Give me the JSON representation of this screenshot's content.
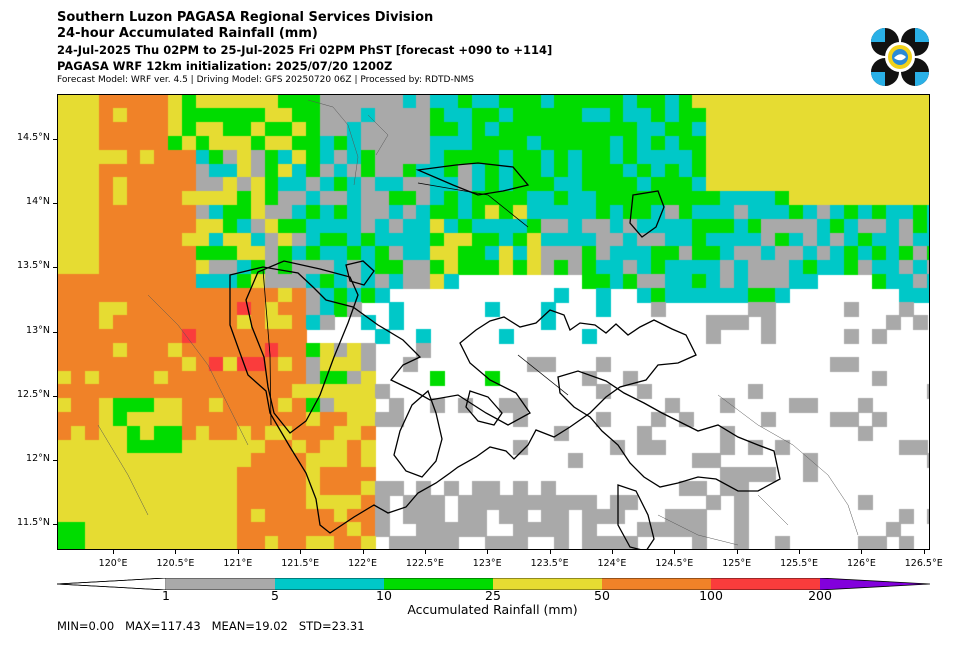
{
  "header": {
    "title": "Southern Luzon PAGASA Regional Services Division",
    "subtitle": "24-hour Accumulated Rainfall (mm)",
    "period": "24-Jul-2025 Thu 02PM to 25-Jul-2025 Fri 02PM PhST [forecast +090 to +114]",
    "model_init": "PAGASA WRF 12km initialization: 2025/07/20 1200Z",
    "credits": "Forecast Model: WRF ver. 4.5 | Driving Model: GFS 20250720 06Z | Processed by: RDTD-NMS"
  },
  "logo": {
    "icon": "pagasa-logo"
  },
  "map": {
    "lon_range": [
      119.55,
      126.55
    ],
    "lat_range": [
      11.3,
      14.85
    ],
    "lat_ticks": [
      "14.5°N",
      "14°N",
      "13.5°N",
      "13°N",
      "12.5°N",
      "12°N",
      "11.5°N"
    ],
    "lat_values": [
      14.5,
      14.0,
      13.5,
      13.0,
      12.5,
      12.0,
      11.5
    ],
    "lon_ticks": [
      "120°E",
      "120.5°E",
      "121°E",
      "121.5°E",
      "122°E",
      "122.5°E",
      "123°E",
      "123.5°E",
      "124°E",
      "124.5°E",
      "125°E",
      "125.5°E",
      "126°E",
      "126.5°E"
    ],
    "lon_values": [
      120.0,
      120.5,
      121.0,
      121.5,
      122.0,
      122.5,
      123.0,
      123.5,
      124.0,
      124.5,
      125.0,
      125.5,
      126.0,
      126.5
    ]
  },
  "colorbar": {
    "labels": [
      "1",
      "5",
      "10",
      "25",
      "50",
      "100",
      "200"
    ],
    "colors": [
      "#a9a9a9",
      "#00c8c8",
      "#00dc00",
      "#e6dc32",
      "#f08228",
      "#fa3c3c",
      "#8200dc"
    ],
    "title": "Accumulated Rainfall (mm)"
  },
  "stats": {
    "text": "MIN=0.00   MAX=117.43   MEAN=19.02   STD=23.31"
  }
}
